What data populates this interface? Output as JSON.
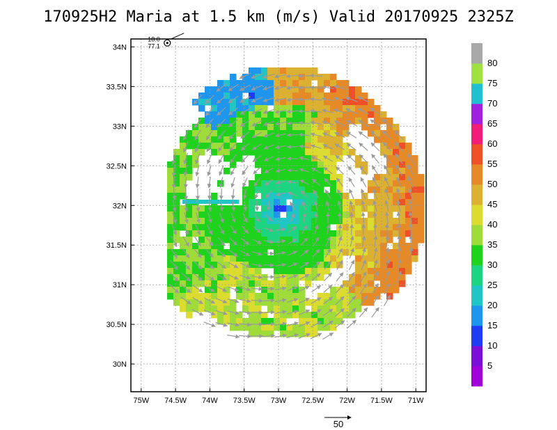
{
  "chart_data": {
    "type": "heatmap",
    "title": "170925H2 Maria at 1.5 km (m/s) Valid 20170925 2325Z",
    "x_ticks": [
      "75W",
      "74.5W",
      "74W",
      "73.5W",
      "73W",
      "72.5W",
      "72W",
      "71.5W",
      "71W"
    ],
    "y_ticks": [
      "30N",
      "30.5N",
      "31N",
      "31.5N",
      "32N",
      "32.5N",
      "33N",
      "33.5N",
      "34N"
    ],
    "xlim": [
      -75.15,
      -70.85
    ],
    "ylim": [
      29.65,
      34.1
    ],
    "grid": true,
    "center": {
      "lon": -72.95,
      "lat": 31.95
    },
    "annotation": {
      "line1": "18.0",
      "line2": "77.1",
      "lon": -74.62,
      "lat": 34.05
    },
    "colorbar": {
      "bins": [
        {
          "lo": 0,
          "hi": 5,
          "color": "#9e00d6"
        },
        {
          "lo": 5,
          "hi": 10,
          "color": "#7a10d8"
        },
        {
          "lo": 10,
          "hi": 15,
          "color": "#1f3cf5"
        },
        {
          "lo": 15,
          "hi": 20,
          "color": "#1e96ee"
        },
        {
          "lo": 20,
          "hi": 25,
          "color": "#20c6c6"
        },
        {
          "lo": 25,
          "hi": 30,
          "color": "#1dd580"
        },
        {
          "lo": 30,
          "hi": 35,
          "color": "#1ed21e"
        },
        {
          "lo": 35,
          "hi": 40,
          "color": "#9fdc3a"
        },
        {
          "lo": 40,
          "hi": 45,
          "color": "#dcdc30"
        },
        {
          "lo": 45,
          "hi": 50,
          "color": "#dcb030"
        },
        {
          "lo": 50,
          "hi": 55,
          "color": "#e68a28"
        },
        {
          "lo": 55,
          "hi": 60,
          "color": "#f05028"
        },
        {
          "lo": 60,
          "hi": 65,
          "color": "#f01e78"
        },
        {
          "lo": 65,
          "hi": 70,
          "color": "#a020e0"
        },
        {
          "lo": 70,
          "hi": 75,
          "color": "#20c0d0"
        },
        {
          "lo": 75,
          "hi": 80,
          "color": "#a0e040"
        },
        {
          "lo": 80,
          "hi": 85,
          "color": "#a8a8a8"
        }
      ],
      "labels": [
        "5",
        "10",
        "15",
        "20",
        "25",
        "30",
        "35",
        "40",
        "45",
        "50",
        "55",
        "60",
        "65",
        "70",
        "75",
        "80"
      ]
    },
    "vector_legend": {
      "label": "50",
      "units": "m/s"
    },
    "wind_field_description": "Hurricane Maria 1.5 km wind speed; weak core near 73W 32N, 30-35 m/s ring, 40-55 m/s band to the east, wind vectors counterclockwise"
  }
}
